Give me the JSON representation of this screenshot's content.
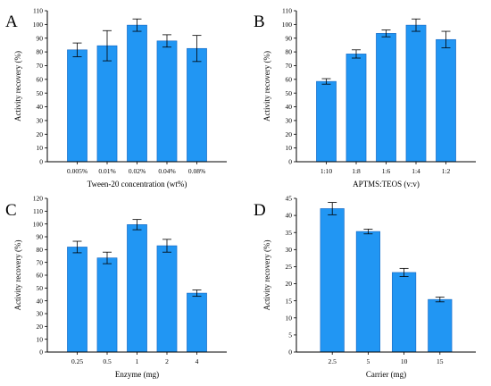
{
  "colors": {
    "bar": "#2196F3",
    "bar_edge": "#1565C0",
    "axis": "#000000"
  },
  "chart_data": [
    {
      "panel": "A",
      "type": "bar",
      "categories": [
        "0.005%",
        "0.01%",
        "0.02%",
        "0.04%",
        "0.08%"
      ],
      "values": [
        81.5,
        84.5,
        99.5,
        88,
        82.5
      ],
      "errors": [
        5,
        11,
        4.5,
        4.5,
        9.5
      ],
      "xlabel": "Tween-20 concentration (wt%)",
      "ylabel": "Activity recovery (%)",
      "ylim": [
        0,
        110
      ],
      "yticks": [
        0,
        10,
        20,
        30,
        40,
        50,
        60,
        70,
        80,
        90,
        100,
        110
      ],
      "grid": false
    },
    {
      "panel": "B",
      "type": "bar",
      "categories": [
        "1:10",
        "1:8",
        "1:6",
        "1:4",
        "1:2"
      ],
      "values": [
        58.5,
        78.5,
        93.5,
        99.5,
        89
      ],
      "errors": [
        2,
        3,
        2.5,
        4.5,
        6
      ],
      "xlabel": "APTMS:TEOS (v:v)",
      "ylabel": "Activity recovery (%)",
      "ylim": [
        0,
        110
      ],
      "yticks": [
        0,
        10,
        20,
        30,
        40,
        50,
        60,
        70,
        80,
        90,
        100,
        110
      ],
      "grid": false
    },
    {
      "panel": "C",
      "type": "bar",
      "categories": [
        "0.25",
        "0.5",
        "1",
        "2",
        "4"
      ],
      "values": [
        82,
        73.5,
        99.5,
        83,
        46
      ],
      "errors": [
        4.5,
        4.5,
        4,
        5,
        2.5
      ],
      "xlabel": "Enzyme (mg)",
      "ylabel": "Activity recovery (%)",
      "ylim": [
        0,
        120
      ],
      "yticks": [
        0,
        10,
        20,
        30,
        40,
        50,
        60,
        70,
        80,
        90,
        100,
        110,
        120
      ],
      "grid": false
    },
    {
      "panel": "D",
      "type": "bar",
      "categories": [
        "2.5",
        "5",
        "10",
        "15"
      ],
      "values": [
        42,
        35.3,
        23.3,
        15.4
      ],
      "errors": [
        1.8,
        0.7,
        1.2,
        0.7
      ],
      "xlabel": "Carrier (mg)",
      "ylabel": "Activity recovery (%)",
      "ylim": [
        0,
        45
      ],
      "yticks": [
        0,
        5,
        10,
        15,
        20,
        25,
        30,
        35,
        40,
        45
      ],
      "grid": false
    }
  ]
}
